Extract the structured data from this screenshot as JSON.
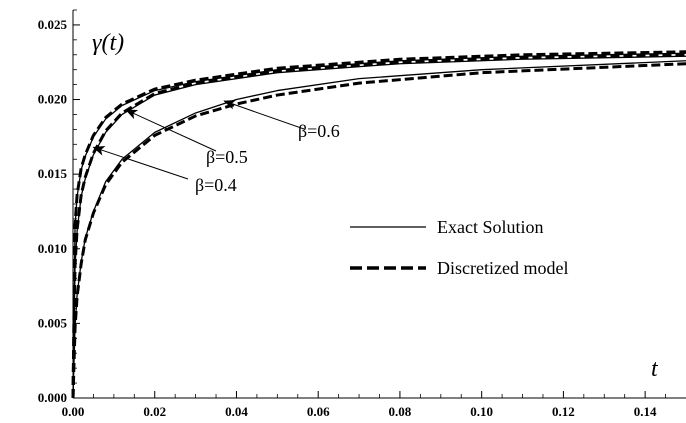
{
  "chart_data": {
    "type": "line",
    "title": "",
    "xlabel": "t",
    "ylabel": "γ(t)",
    "xlim": [
      0,
      0.15
    ],
    "ylim": [
      0,
      0.026
    ],
    "x_ticks": [
      "0.00",
      "0.02",
      "0.04",
      "0.06",
      "0.08",
      "0.10",
      "0.12",
      "0.14"
    ],
    "y_ticks": [
      "0.000",
      "0.005",
      "0.010",
      "0.015",
      "0.020",
      "0.025"
    ],
    "grid": false,
    "legend": {
      "placement": "center-right",
      "entries": [
        {
          "label": "Exact Solution",
          "style": "solid"
        },
        {
          "label": "Discretized model",
          "style": "dashed"
        }
      ]
    },
    "annotations": [
      {
        "text": "β=0.4",
        "arrow_to": [
          0.005,
          0.0168
        ]
      },
      {
        "text": "β=0.5",
        "arrow_to": [
          0.013,
          0.0193
        ]
      },
      {
        "text": "β=0.6",
        "arrow_to": [
          0.037,
          0.0199
        ]
      }
    ],
    "series": [
      {
        "style": "solid",
        "beta": 0.4,
        "x": [
          0,
          0.0005,
          0.001,
          0.002,
          0.003,
          0.005,
          0.008,
          0.012,
          0.02,
          0.03,
          0.05,
          0.08,
          0.11,
          0.15
        ],
        "y": [
          0,
          0.0115,
          0.0135,
          0.0153,
          0.0162,
          0.0175,
          0.0187,
          0.0196,
          0.0206,
          0.0212,
          0.022,
          0.0226,
          0.0229,
          0.0231
        ]
      },
      {
        "style": "dashed",
        "beta": 0.4,
        "x": [
          0,
          0.0005,
          0.001,
          0.002,
          0.003,
          0.005,
          0.008,
          0.012,
          0.02,
          0.03,
          0.05,
          0.08,
          0.11,
          0.15
        ],
        "y": [
          0,
          0.0116,
          0.0136,
          0.0154,
          0.0163,
          0.0176,
          0.0188,
          0.0197,
          0.0207,
          0.0213,
          0.0221,
          0.0227,
          0.023,
          0.0232
        ]
      },
      {
        "style": "solid",
        "beta": 0.5,
        "x": [
          0,
          0.0005,
          0.001,
          0.002,
          0.003,
          0.005,
          0.008,
          0.012,
          0.02,
          0.03,
          0.05,
          0.08,
          0.11,
          0.15
        ],
        "y": [
          0,
          0.0088,
          0.0112,
          0.0135,
          0.0147,
          0.0163,
          0.0178,
          0.019,
          0.0203,
          0.021,
          0.0218,
          0.0224,
          0.0227,
          0.0229
        ]
      },
      {
        "style": "dashed",
        "beta": 0.5,
        "x": [
          0,
          0.0005,
          0.001,
          0.002,
          0.003,
          0.005,
          0.008,
          0.012,
          0.02,
          0.03,
          0.05,
          0.08,
          0.11,
          0.15
        ],
        "y": [
          0,
          0.0089,
          0.0113,
          0.0136,
          0.0148,
          0.0164,
          0.0179,
          0.0191,
          0.0204,
          0.0211,
          0.0219,
          0.0225,
          0.0228,
          0.023
        ]
      },
      {
        "style": "solid",
        "beta": 0.6,
        "x": [
          0,
          0.0005,
          0.001,
          0.002,
          0.003,
          0.005,
          0.008,
          0.012,
          0.02,
          0.03,
          0.04,
          0.05,
          0.07,
          0.1,
          0.15
        ],
        "y": [
          0,
          0.0048,
          0.0069,
          0.0091,
          0.0107,
          0.0125,
          0.0145,
          0.016,
          0.0178,
          0.0191,
          0.02,
          0.0206,
          0.0214,
          0.022,
          0.0226
        ]
      },
      {
        "style": "dashed",
        "beta": 0.6,
        "x": [
          0,
          0.0005,
          0.001,
          0.002,
          0.003,
          0.005,
          0.008,
          0.012,
          0.02,
          0.03,
          0.04,
          0.05,
          0.07,
          0.1,
          0.15
        ],
        "y": [
          0,
          0.0047,
          0.0068,
          0.009,
          0.0106,
          0.0124,
          0.0143,
          0.0158,
          0.0176,
          0.0189,
          0.0197,
          0.0203,
          0.0211,
          0.0218,
          0.0224
        ]
      }
    ]
  }
}
